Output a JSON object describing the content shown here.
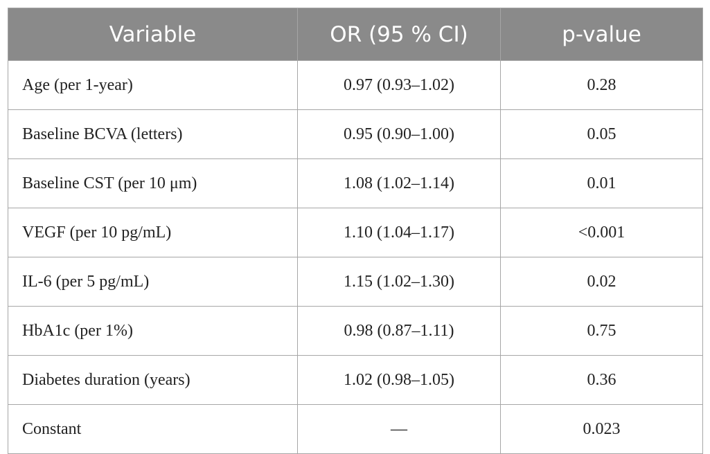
{
  "table": {
    "columns": [
      "Variable",
      "OR (95 % CI)",
      "p-value"
    ],
    "rows": [
      [
        "Age (per 1-year)",
        "0.97 (0.93–1.02)",
        "0.28"
      ],
      [
        "Baseline BCVA (letters)",
        "0.95 (0.90–1.00)",
        "0.05"
      ],
      [
        "Baseline CST (per 10 μm)",
        "1.08 (1.02–1.14)",
        "0.01"
      ],
      [
        "VEGF (per 10 pg/mL)",
        "1.10 (1.04–1.17)",
        "<0.001"
      ],
      [
        "IL-6 (per 5 pg/mL)",
        "1.15 (1.02–1.30)",
        "0.02"
      ],
      [
        "HbA1c (per 1%)",
        "0.98 (0.87–1.11)",
        "0.75"
      ],
      [
        "Diabetes duration (years)",
        "1.02 (0.98–1.05)",
        "0.36"
      ],
      [
        "Constant",
        "—",
        "0.023"
      ]
    ]
  }
}
